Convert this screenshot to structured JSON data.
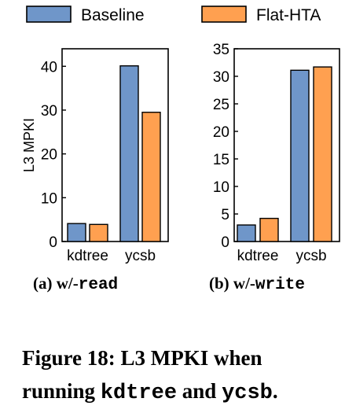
{
  "legend": [
    {
      "name": "Baseline",
      "color": "#6f96c9"
    },
    {
      "name": "Flat-HTA",
      "color": "#ffa050"
    }
  ],
  "chart_data": [
    {
      "type": "bar",
      "categories": [
        "kdtree",
        "ycsb"
      ],
      "series": [
        {
          "name": "Baseline",
          "values": [
            4.1,
            40.1
          ]
        },
        {
          "name": "Flat-HTA",
          "values": [
            3.9,
            29.5
          ]
        }
      ],
      "ylabel": "L3 MPKI",
      "ylim": [
        0,
        44
      ],
      "yticks": [
        0,
        10,
        20,
        30,
        40
      ],
      "ytick_labels": [
        "0",
        "10",
        "20",
        "30",
        "40"
      ],
      "caption_prefix": "(a) w/-",
      "caption_code": "read"
    },
    {
      "type": "bar",
      "categories": [
        "kdtree",
        "ycsb"
      ],
      "series": [
        {
          "name": "Baseline",
          "values": [
            3.0,
            31.1
          ]
        },
        {
          "name": "Flat-HTA",
          "values": [
            4.2,
            31.7
          ]
        }
      ],
      "ylabel": "",
      "ylim": [
        0,
        35
      ],
      "yticks": [
        0,
        5,
        10,
        15,
        20,
        25,
        30,
        35
      ],
      "ytick_labels": [
        "0",
        "5",
        "10",
        "15",
        "20",
        "25",
        "30",
        "35"
      ],
      "caption_prefix": "(b) w/-",
      "caption_code": "write"
    }
  ],
  "figure_caption": {
    "line1": "Figure 18: L3 MPKI when",
    "line2_prefix": "running ",
    "line2_code1": "kdtree",
    "line2_mid": " and ",
    "line2_code2": "ycsb",
    "line2_suffix": "."
  }
}
